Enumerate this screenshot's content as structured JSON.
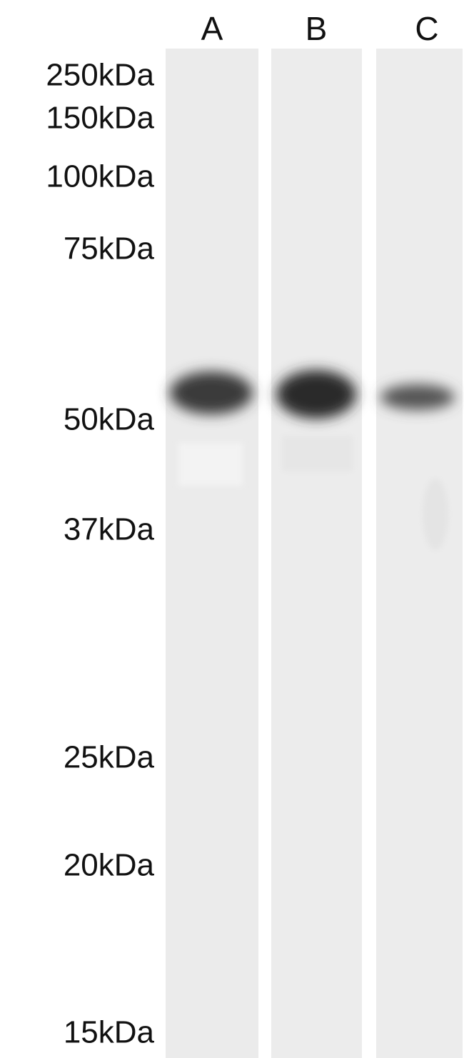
{
  "lanes": [
    "A",
    "B",
    "C"
  ],
  "markers": [
    "250kDa",
    "150kDa",
    "100kDa",
    "75kDa",
    "50kDa",
    "37kDa",
    "25kDa",
    "20kDa",
    "15kDa"
  ]
}
